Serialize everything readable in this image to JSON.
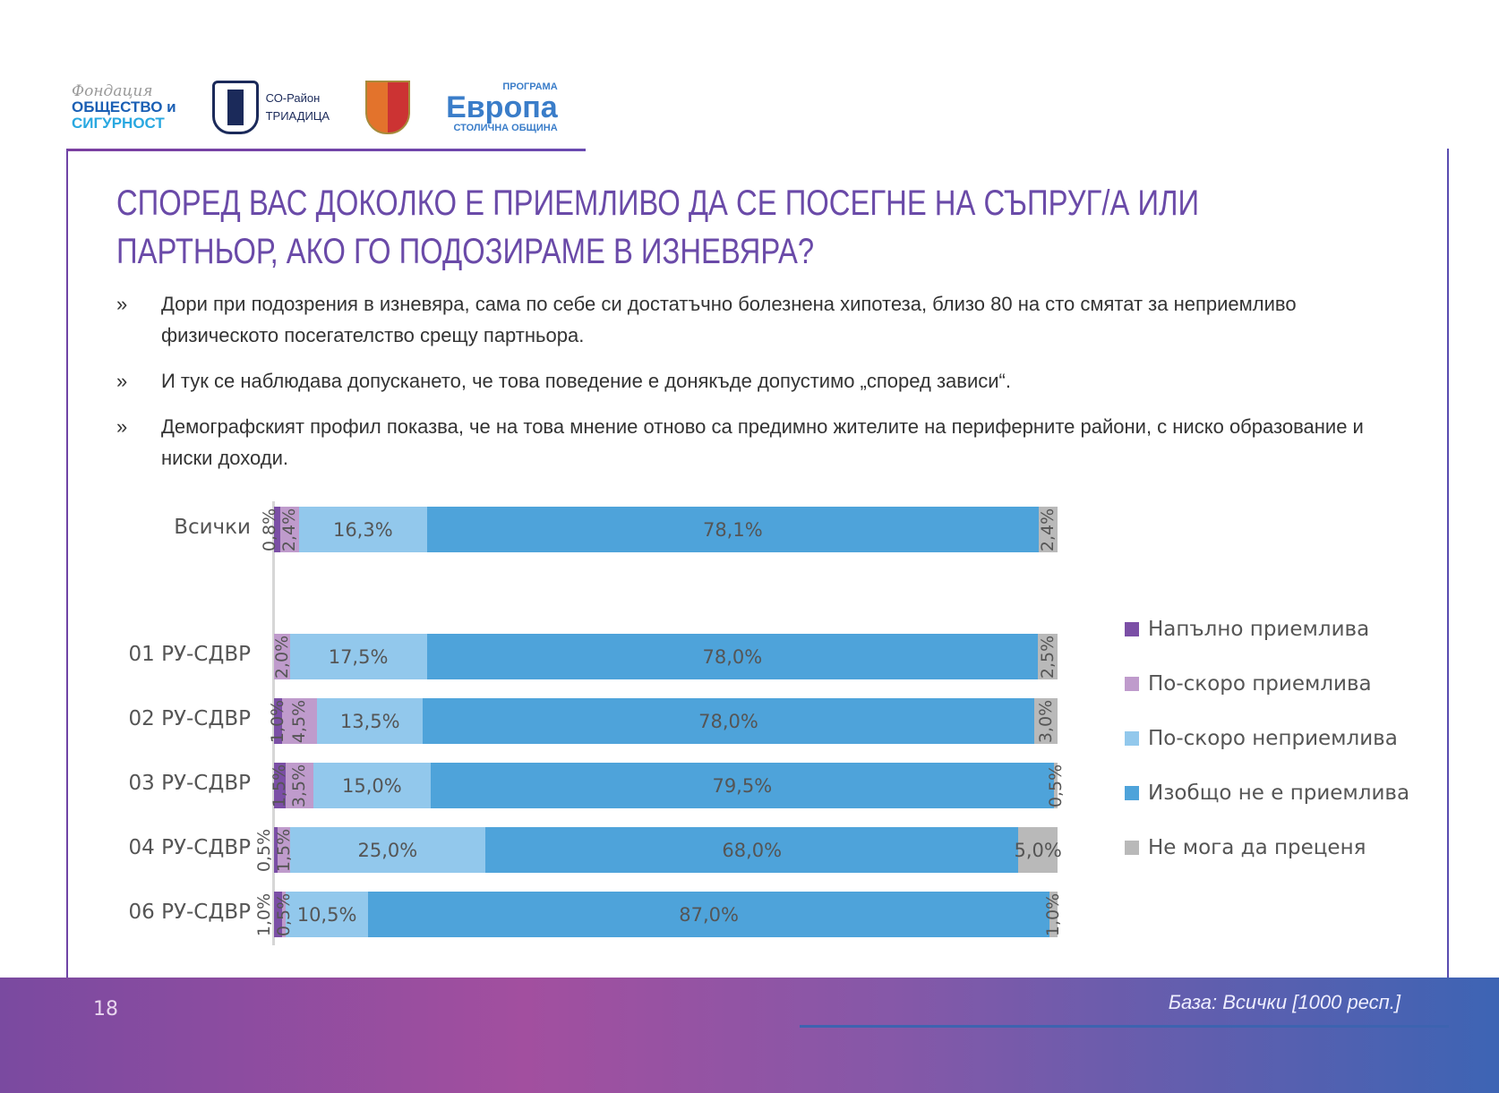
{
  "logos": {
    "fund": [
      "Фондация",
      "ОБЩЕСТВО и",
      "СИГУРНОСТ"
    ],
    "district": [
      "СО-Район",
      "ТРИАДИЦА"
    ],
    "program": [
      "ПРОГРАМА",
      "Европа",
      "СТОЛИЧНА ОБЩИНА"
    ]
  },
  "title": "СПОРЕД ВАС ДОКОЛКО Е ПРИЕМЛИВО ДА СЕ ПОСЕГНЕ НА СЪПРУГ/А ИЛИ ПАРТНЬОР, АКО ГО ПОДОЗИРАМЕ В ИЗНЕВЯРА?",
  "bullet_marker": "»",
  "bullets": [
    "Дори при подозрения в изневяра, сама по себе си достатъчно болезнена хипотеза, близо 80 на сто смятат за неприемливо физическото посегателство срещу партньора.",
    "И тук се наблюдава допускането, че това поведение е донякъде допустимо „според зависи“.",
    "Демографският профил показва, че на това мнение отново са предимно жителите на периферните райони, с ниско образование и ниски доходи."
  ],
  "footer": {
    "page": "18",
    "base": "База: Всички [1000 респ.]"
  },
  "chart_data": {
    "type": "bar",
    "stacked": true,
    "orientation": "horizontal",
    "xlim": [
      0,
      100
    ],
    "categories": [
      "Всички",
      "01 РУ-СДВР",
      "02 РУ-СДВР",
      "03 РУ-СДВР",
      "04 РУ-СДВР",
      "06 РУ-СДВР"
    ],
    "series": [
      {
        "name": "Напълно приемлива",
        "color": "#7b4fa6",
        "values": [
          0.8,
          0,
          1.0,
          1.5,
          0.5,
          1.0
        ]
      },
      {
        "name": "По-скоро приемлива",
        "color": "#bf9bcc",
        "values": [
          2.4,
          2.0,
          4.5,
          3.5,
          1.5,
          0.5
        ]
      },
      {
        "name": "По-скоро неприемлива",
        "color": "#92c8ec",
        "values": [
          16.3,
          17.5,
          13.5,
          15.0,
          25.0,
          10.5
        ]
      },
      {
        "name": "Изобщо не е приемлива",
        "color": "#4ea3da",
        "values": [
          78.1,
          78.0,
          78.0,
          79.5,
          68.0,
          87.0
        ]
      },
      {
        "name": "Не мога да преценя",
        "color": "#b9b9b9",
        "values": [
          2.4,
          2.5,
          3.0,
          0.5,
          5.0,
          1.0
        ]
      }
    ],
    "legend": "right"
  }
}
